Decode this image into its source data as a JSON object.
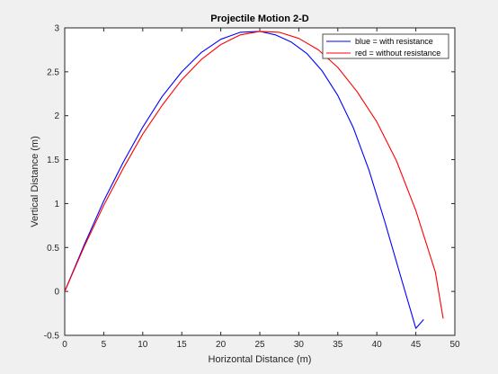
{
  "chart_data": {
    "type": "line",
    "title": "Projectile Motion 2-D",
    "xlabel": "Horizontal Distance (m)",
    "ylabel": "Vertical Distance (m)",
    "xlim": [
      0,
      50
    ],
    "ylim": [
      -0.5,
      3
    ],
    "xticks": [
      0,
      5,
      10,
      15,
      20,
      25,
      30,
      35,
      40,
      45,
      50
    ],
    "yticks": [
      -0.5,
      0,
      0.5,
      1,
      1.5,
      2,
      2.5,
      3
    ],
    "grid": false,
    "legend_position": "top-right",
    "series": [
      {
        "name": "blue = with resistance",
        "color": "#0000ff",
        "x": [
          0,
          2.5,
          5,
          7.5,
          10,
          12.5,
          15,
          17.5,
          20,
          22.5,
          25,
          27,
          29,
          31,
          33,
          35,
          37,
          39,
          41,
          43,
          45,
          46
        ],
        "y": [
          0,
          0.53,
          1.03,
          1.47,
          1.87,
          2.22,
          2.5,
          2.72,
          2.87,
          2.95,
          2.96,
          2.92,
          2.84,
          2.71,
          2.51,
          2.23,
          1.86,
          1.38,
          0.8,
          0.19,
          -0.42,
          -0.32
        ]
      },
      {
        "name": "red = without resistance",
        "color": "#ff0000",
        "x": [
          0,
          2.5,
          5,
          7.5,
          10,
          12.5,
          15,
          17.5,
          20,
          22.5,
          25,
          27.5,
          30,
          32.5,
          35,
          37.5,
          40,
          42.5,
          45,
          47.5,
          48.5
        ],
        "y": [
          0,
          0.51,
          0.98,
          1.4,
          1.79,
          2.12,
          2.41,
          2.64,
          2.81,
          2.92,
          2.96,
          2.95,
          2.88,
          2.75,
          2.55,
          2.27,
          1.93,
          1.49,
          0.92,
          0.22,
          -0.31
        ]
      }
    ]
  }
}
